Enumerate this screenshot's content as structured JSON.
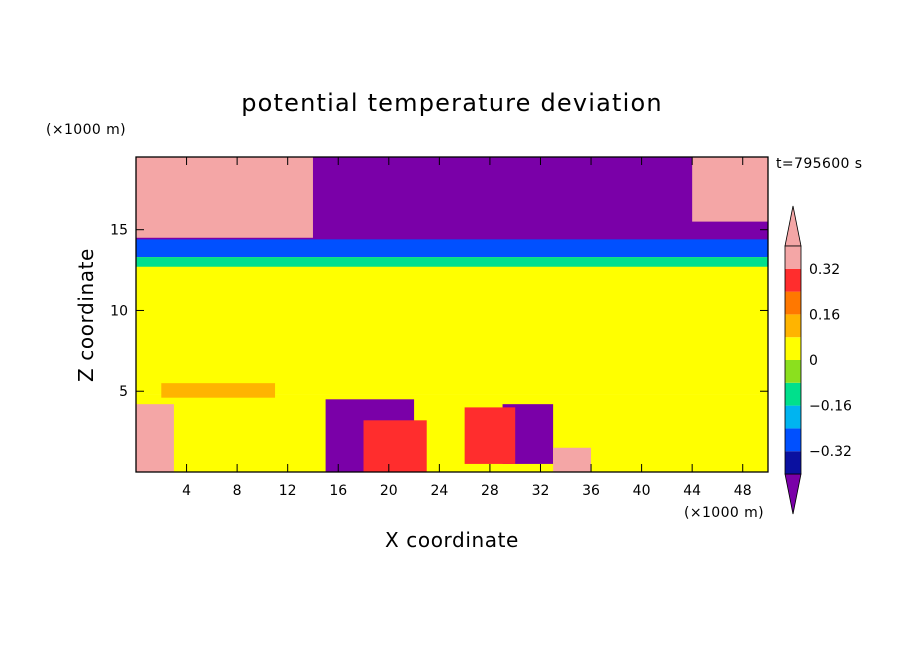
{
  "chart_data": {
    "type": "heatmap",
    "title": "potential temperature deviation",
    "xlabel": "X coordinate",
    "ylabel": "Z coordinate",
    "x_unit": "(×1000 m)",
    "y_unit": "(×1000 m)",
    "time_label": "t=795600 s",
    "xlim": [
      0,
      50
    ],
    "ylim": [
      0,
      19.5
    ],
    "x_ticks": [
      4,
      8,
      12,
      16,
      20,
      24,
      28,
      32,
      36,
      40,
      44,
      48
    ],
    "y_ticks": [
      5,
      10,
      15
    ],
    "colorbar": {
      "levels": [
        -0.4,
        -0.32,
        -0.24,
        -0.16,
        -0.08,
        0,
        0.08,
        0.16,
        0.24,
        0.32,
        0.4
      ],
      "labels": [
        "0.32",
        "0.16",
        "0",
        "−0.16",
        "−0.32"
      ],
      "label_values": [
        0.32,
        0.16,
        0,
        -0.16,
        -0.32
      ],
      "colors": [
        "#7a00a8",
        "#0a10a0",
        "#0050ff",
        "#00b4f0",
        "#00e08c",
        "#8be01e",
        "#ffff00",
        "#ffb400",
        "#ff7800",
        "#ff2d2d",
        "#f4a6a6"
      ]
    },
    "regions": [
      {
        "x": [
          0,
          50
        ],
        "z": [
          0,
          4.8
        ],
        "value": 0.0
      },
      {
        "x": [
          0,
          50
        ],
        "z": [
          4.8,
          13.5
        ],
        "value": 0.04
      },
      {
        "x": [
          0,
          50
        ],
        "z": [
          13.5,
          19.5
        ],
        "value": -0.45
      },
      {
        "x": [
          0,
          50
        ],
        "z": [
          13.3,
          14.4
        ],
        "value": -0.27
      },
      {
        "x": [
          0,
          50
        ],
        "z": [
          12.7,
          13.3
        ],
        "value": -0.1
      },
      {
        "x": [
          0,
          50
        ],
        "z": [
          11.2,
          12.7
        ],
        "value": 0.04
      },
      {
        "x": [
          0,
          14
        ],
        "z": [
          14.5,
          19.5
        ],
        "value": 0.45
      },
      {
        "x": [
          44,
          50
        ],
        "z": [
          15.5,
          19.5
        ],
        "value": 0.45
      },
      {
        "x": [
          15,
          22
        ],
        "z": [
          0,
          4.5
        ],
        "value": -0.45
      },
      {
        "x": [
          29,
          33
        ],
        "z": [
          0.5,
          4.2
        ],
        "value": -0.45
      },
      {
        "x": [
          0,
          3
        ],
        "z": [
          0,
          4.2
        ],
        "value": 0.45
      },
      {
        "x": [
          18,
          23
        ],
        "z": [
          0,
          3.2
        ],
        "value": 0.28
      },
      {
        "x": [
          26,
          30
        ],
        "z": [
          0.5,
          4.0
        ],
        "value": 0.3
      },
      {
        "x": [
          33,
          36
        ],
        "z": [
          0,
          1.5
        ],
        "value": 0.35
      },
      {
        "x": [
          2,
          11
        ],
        "z": [
          4.6,
          5.5
        ],
        "value": 0.12
      }
    ]
  }
}
